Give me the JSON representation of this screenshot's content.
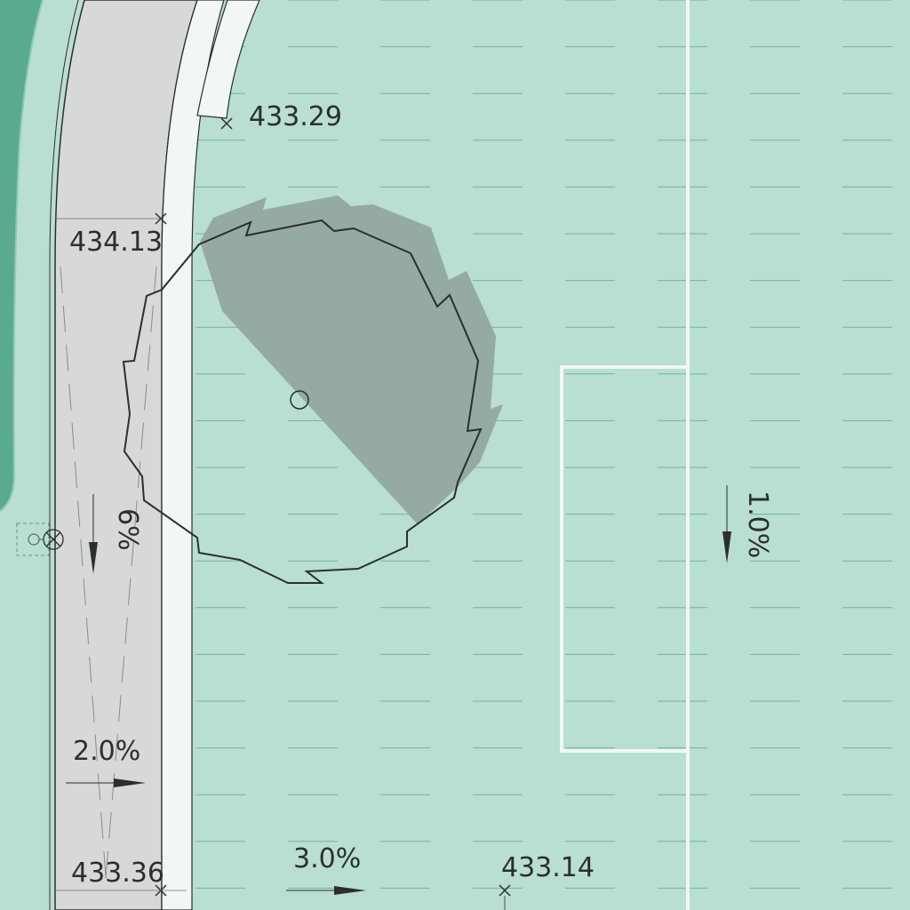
{
  "plan": {
    "colors": {
      "turf": "#b9ded2",
      "turf_stripe": "#6fb69c",
      "path": "#d7d8d8",
      "planting": "#5aaa8e",
      "tree_shadow": "#94aaa2",
      "line_white": "#f2f6f4",
      "ink": "#2b2f30"
    },
    "spot_elevations": [
      {
        "value": "433.29"
      },
      {
        "value": "434.13"
      },
      {
        "value": "433.36"
      },
      {
        "value": "433.14"
      }
    ],
    "slopes": [
      {
        "value": "6%",
        "direction": "down"
      },
      {
        "value": "2.0%",
        "direction": "right"
      },
      {
        "value": "3.0%",
        "direction": "right"
      },
      {
        "value": "1.0%",
        "direction": "down"
      }
    ],
    "icons": [
      "tree-canopy",
      "tree-trunk-icon",
      "drain-inlet-icon"
    ]
  }
}
